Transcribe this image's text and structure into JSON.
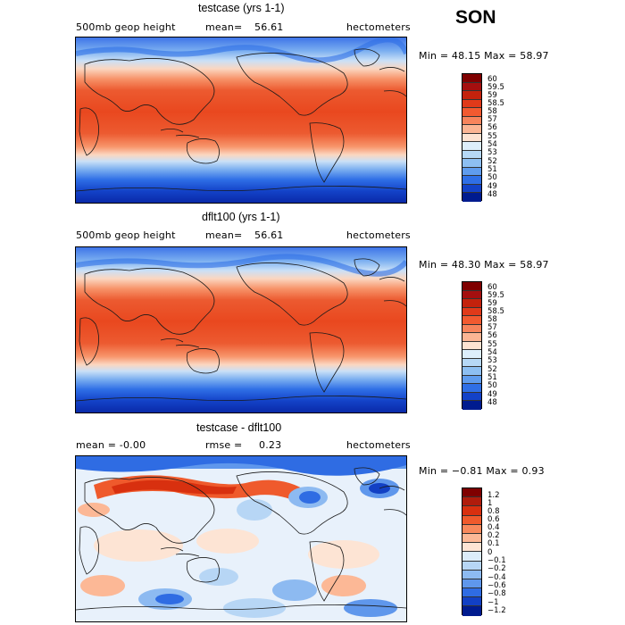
{
  "season": "SON",
  "panels": [
    {
      "title": "testcase (yrs 1-1)",
      "left_label": "500mb geop height",
      "mean_label": "mean=",
      "mean_value": "56.61",
      "units": "hectometers",
      "minmax": "Min =  48.15 Max =  58.97",
      "type": "field"
    },
    {
      "title": "dflt100 (yrs 1-1)",
      "left_label": "500mb geop height",
      "mean_label": "mean=",
      "mean_value": "56.61",
      "units": "hectometers",
      "minmax": "Min =  48.30 Max =  58.97",
      "type": "field"
    },
    {
      "title": "testcase - dflt100",
      "left_label": "mean =   -0.00",
      "mean_label": "rmse =",
      "mean_value": "0.23",
      "units": "hectometers",
      "minmax": "Min = −0.81 Max =   0.93",
      "type": "diff"
    }
  ],
  "chart_data": [
    {
      "type": "heatmap",
      "title": "testcase (yrs 1-1)",
      "variable": "500mb geop height",
      "units": "hectometers",
      "season": "SON",
      "mean": 56.61,
      "min": 48.15,
      "max": 58.97,
      "colorbar_levels": [
        "60",
        "59.5",
        "59",
        "58.5",
        "58",
        "57",
        "56",
        "55",
        "54",
        "53",
        "52",
        "51",
        "50",
        "49",
        "48"
      ]
    },
    {
      "type": "heatmap",
      "title": "dflt100 (yrs 1-1)",
      "variable": "500mb geop height",
      "units": "hectometers",
      "season": "SON",
      "mean": 56.61,
      "min": 48.3,
      "max": 58.97,
      "colorbar_levels": [
        "60",
        "59.5",
        "59",
        "58.5",
        "58",
        "57",
        "56",
        "55",
        "54",
        "53",
        "52",
        "51",
        "50",
        "49",
        "48"
      ]
    },
    {
      "type": "heatmap",
      "title": "testcase - dflt100",
      "units": "hectometers",
      "mean": -0.0,
      "rmse": 0.23,
      "min": -0.81,
      "max": 0.93,
      "colorbar_levels": [
        "1.2",
        "1",
        "0.8",
        "0.6",
        "0.4",
        "0.2",
        "0.1",
        "0",
        "−0.1",
        "−0.2",
        "−0.4",
        "−0.6",
        "−0.8",
        "−1",
        "−1.2"
      ]
    }
  ],
  "colors": {
    "field": [
      "#7f0000",
      "#a50f0f",
      "#c4220c",
      "#e03a1a",
      "#f25a30",
      "#f7845c",
      "#fbb594",
      "#fde3d2",
      "#ddeefb",
      "#b6d8f6",
      "#8dbff2",
      "#5f9cee",
      "#2f6fe6",
      "#1342c8",
      "#001b8f"
    ],
    "diff": [
      "#7f0000",
      "#b01c0c",
      "#d8300f",
      "#ef5a2c",
      "#f8895c",
      "#fcb896",
      "#fde4d4",
      "#dcecf9",
      "#b7d6f5",
      "#8dbaf1",
      "#5f97ec",
      "#2f6ce3",
      "#1240c4",
      "#001b8f"
    ]
  }
}
